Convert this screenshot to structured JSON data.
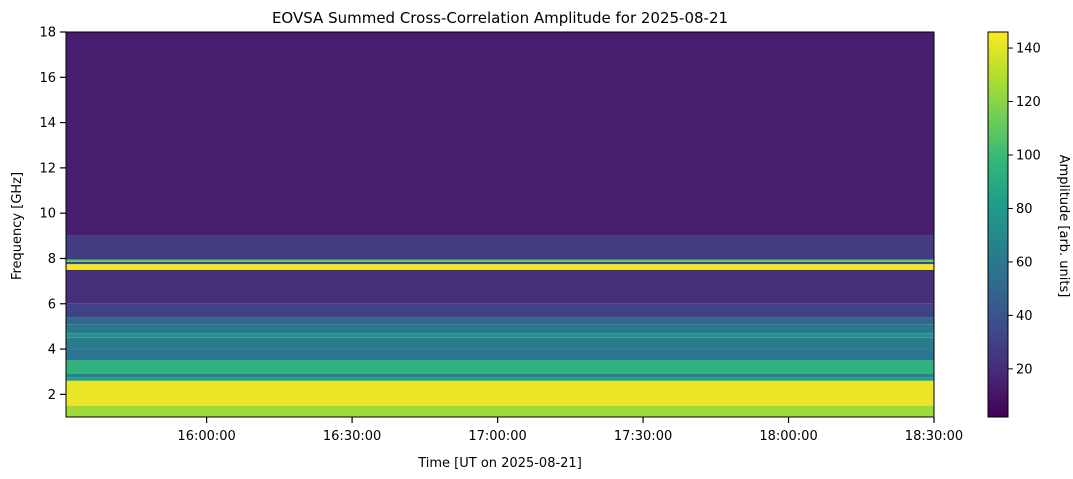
{
  "chart_data": {
    "type": "heatmap",
    "title": "EOVSA Summed Cross-Correlation Amplitude for 2025-08-21",
    "xlabel": "Time [UT on 2025-08-21]",
    "ylabel": "Frequency [GHz]",
    "colorbar_label": "Amplitude [arb. units]",
    "colormap": "viridis",
    "colormap_stops": [
      "#440154",
      "#482878",
      "#3e4989",
      "#31688e",
      "#26828e",
      "#1f9e89",
      "#35b779",
      "#6ece58",
      "#b5de2b",
      "#fde725"
    ],
    "x_ticks": [
      "16:00:00",
      "16:30:00",
      "17:00:00",
      "17:30:00",
      "18:00:00",
      "18:30:00"
    ],
    "xlim": [
      "15:31:00",
      "18:30:00"
    ],
    "y_ticks": [
      2,
      4,
      6,
      8,
      10,
      12,
      14,
      16,
      18
    ],
    "ylim": [
      1.0,
      18.0
    ],
    "colorbar_ticks": [
      20,
      40,
      60,
      80,
      100,
      120,
      140
    ],
    "colorbar_range": [
      2,
      146
    ],
    "bands": [
      {
        "f0": 1.0,
        "f1": 1.5,
        "amp": 125
      },
      {
        "f0": 1.5,
        "f1": 2.6,
        "amp": 142
      },
      {
        "f0": 2.6,
        "f1": 2.75,
        "amp": 85
      },
      {
        "f0": 2.75,
        "f1": 2.9,
        "amp": 65
      },
      {
        "f0": 2.9,
        "f1": 3.5,
        "amp": 95
      },
      {
        "f0": 3.5,
        "f1": 4.0,
        "amp": 58
      },
      {
        "f0": 4.0,
        "f1": 4.5,
        "amp": 62
      },
      {
        "f0": 4.5,
        "f1": 4.7,
        "amp": 75
      },
      {
        "f0": 4.7,
        "f1": 5.1,
        "amp": 60
      },
      {
        "f0": 5.1,
        "f1": 5.4,
        "amp": 50
      },
      {
        "f0": 5.4,
        "f1": 6.0,
        "amp": 30
      },
      {
        "f0": 6.0,
        "f1": 7.5,
        "amp": 22
      },
      {
        "f0": 7.5,
        "f1": 7.75,
        "amp": 145
      },
      {
        "f0": 7.75,
        "f1": 7.85,
        "amp": 35
      },
      {
        "f0": 7.85,
        "f1": 7.95,
        "amp": 110
      },
      {
        "f0": 7.95,
        "f1": 9.0,
        "amp": 28
      },
      {
        "f0": 9.0,
        "f1": 18.0,
        "amp": 14
      }
    ]
  }
}
